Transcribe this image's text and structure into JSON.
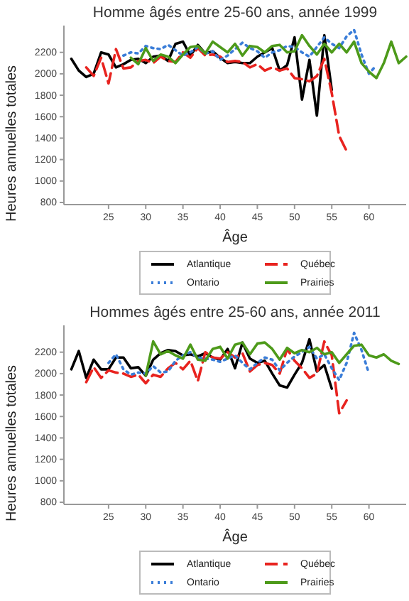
{
  "chart_data": [
    {
      "type": "line",
      "title": "Homme âgés entre 25-60 ans, année 1999",
      "xlabel": "Âge",
      "ylabel": "Heures annuelles totales",
      "x": [
        20,
        21,
        22,
        23,
        24,
        25,
        26,
        27,
        28,
        29,
        30,
        31,
        32,
        33,
        34,
        35,
        36,
        37,
        38,
        39,
        40,
        41,
        42,
        43,
        44,
        45,
        46,
        47,
        48,
        49,
        50,
        51,
        52,
        53,
        54,
        55,
        56,
        57,
        58,
        59,
        60,
        61,
        62,
        63,
        64,
        65
      ],
      "xlim": [
        19,
        65
      ],
      "xticks": [
        25,
        30,
        35,
        40,
        45,
        50,
        55,
        60
      ],
      "ylim": [
        780,
        2450
      ],
      "yticks": [
        800,
        1000,
        1200,
        1400,
        1600,
        1800,
        2000,
        2200
      ],
      "grid": false,
      "legend": "bottom",
      "series": [
        {
          "name": "Atlantique",
          "color": "#000000",
          "line_style": "solid",
          "values": [
            2140,
            2030,
            1970,
            2000,
            2200,
            2180,
            2060,
            2090,
            2130,
            2140,
            2100,
            2160,
            2170,
            2120,
            2280,
            2300,
            2170,
            2270,
            2190,
            2210,
            2150,
            2100,
            2110,
            2100,
            2100,
            2160,
            2200,
            2240,
            2030,
            2080,
            2340,
            1760,
            2130,
            1610,
            2360,
            1850,
            null,
            null,
            null,
            null,
            null,
            null,
            null,
            null,
            null,
            null
          ]
        },
        {
          "name": "Québec",
          "color": "#e8231f",
          "line_style": "dashed",
          "values": [
            null,
            null,
            2060,
            1980,
            2150,
            1910,
            2230,
            2050,
            2060,
            2120,
            2130,
            2100,
            2160,
            2120,
            2110,
            2200,
            2150,
            2240,
            2170,
            2180,
            2160,
            2110,
            2120,
            2110,
            2060,
            2090,
            2030,
            2060,
            2030,
            2050,
            1960,
            1950,
            1930,
            1980,
            2140,
            1820,
            1420,
            1280,
            null,
            null,
            null,
            null,
            null,
            null,
            null,
            null
          ]
        },
        {
          "name": "Ontario",
          "color": "#3a7dd8",
          "line_style": "dotted",
          "values": [
            null,
            null,
            null,
            null,
            null,
            null,
            null,
            2170,
            2200,
            2190,
            2260,
            2240,
            2230,
            2270,
            2220,
            2170,
            2200,
            2250,
            2190,
            2210,
            2130,
            2170,
            2230,
            2290,
            2240,
            2210,
            2150,
            2200,
            2220,
            2260,
            2250,
            2200,
            2160,
            2250,
            2340,
            2280,
            2240,
            2350,
            2410,
            2180,
            2000,
            2080,
            null,
            null,
            null,
            null
          ]
        },
        {
          "name": "Prairies",
          "color": "#4d9a1a",
          "line_style": "solid",
          "values": [
            null,
            null,
            null,
            null,
            null,
            null,
            null,
            null,
            2150,
            2090,
            2240,
            2120,
            2180,
            2160,
            2100,
            2180,
            2250,
            2260,
            2190,
            2300,
            2250,
            2200,
            2280,
            2170,
            2260,
            2250,
            2200,
            2260,
            2270,
            2200,
            2210,
            2360,
            2260,
            2180,
            2280,
            2200,
            2280,
            2200,
            2300,
            2100,
            2020,
            1960,
            2100,
            2300,
            2100,
            2160
          ]
        }
      ]
    },
    {
      "type": "line",
      "title": "Hommes âgés entre 25-60 ans, année 2011",
      "xlabel": "Âge",
      "ylabel": "Heures annuelles totales",
      "x": [
        20,
        21,
        22,
        23,
        24,
        25,
        26,
        27,
        28,
        29,
        30,
        31,
        32,
        33,
        34,
        35,
        36,
        37,
        38,
        39,
        40,
        41,
        42,
        43,
        44,
        45,
        46,
        47,
        48,
        49,
        50,
        51,
        52,
        53,
        54,
        55,
        56,
        57,
        58,
        59,
        60,
        61,
        62,
        63,
        64
      ],
      "xlim": [
        19,
        65
      ],
      "xticks": [
        25,
        30,
        35,
        40,
        45,
        50,
        55,
        60
      ],
      "ylim": [
        780,
        2450
      ],
      "yticks": [
        800,
        1000,
        1200,
        1400,
        1600,
        1800,
        2000,
        2200
      ],
      "grid": false,
      "legend": "bottom",
      "series": [
        {
          "name": "Atlantique",
          "color": "#000000",
          "line_style": "solid",
          "values": [
            2040,
            2210,
            1960,
            2130,
            2040,
            2040,
            2150,
            2150,
            2050,
            2060,
            1980,
            2130,
            2190,
            2220,
            2210,
            2170,
            2180,
            2160,
            2190,
            2150,
            2130,
            2230,
            2050,
            2290,
            2140,
            2100,
            2120,
            2000,
            1890,
            1870,
            1990,
            2100,
            2320,
            2020,
            2080,
            1860,
            null,
            null,
            null,
            null,
            null,
            null,
            null,
            null,
            null
          ]
        },
        {
          "name": "Québec",
          "color": "#e8231f",
          "line_style": "dashed",
          "values": [
            null,
            null,
            1920,
            2060,
            1960,
            2030,
            2010,
            2000,
            1970,
            1990,
            1910,
            1990,
            1970,
            2050,
            2100,
            2040,
            2120,
            1930,
            2200,
            2150,
            2140,
            2200,
            2150,
            2190,
            2020,
            2080,
            2100,
            2080,
            2000,
            2230,
            2120,
            2050,
            1960,
            2000,
            2300,
            2170,
            1630,
            1750,
            null,
            null,
            null,
            null,
            null,
            null,
            null
          ]
        },
        {
          "name": "Ontario",
          "color": "#3a7dd8",
          "line_style": "dotted",
          "values": [
            null,
            null,
            null,
            null,
            null,
            2100,
            2180,
            2040,
            1990,
            2010,
            2000,
            2070,
            2010,
            2020,
            2120,
            2170,
            2200,
            2150,
            2140,
            2130,
            2110,
            2140,
            2170,
            2100,
            2040,
            2100,
            2150,
            2130,
            2030,
            2100,
            2160,
            2200,
            2250,
            2140,
            2180,
            2050,
            1940,
            2100,
            2380,
            2220,
            2000,
            null,
            null,
            null,
            null
          ]
        },
        {
          "name": "Prairies",
          "color": "#4d9a1a",
          "line_style": "solid",
          "values": [
            null,
            null,
            null,
            null,
            null,
            null,
            null,
            null,
            null,
            null,
            1980,
            2300,
            2180,
            2210,
            2170,
            2140,
            2270,
            2130,
            2120,
            2230,
            2250,
            2140,
            2270,
            2290,
            2180,
            2280,
            2290,
            2230,
            2130,
            2240,
            2190,
            2220,
            2200,
            2240,
            2180,
            2200,
            2100,
            2180,
            2260,
            2270,
            2170,
            2150,
            2180,
            2120,
            2090
          ]
        }
      ]
    }
  ]
}
